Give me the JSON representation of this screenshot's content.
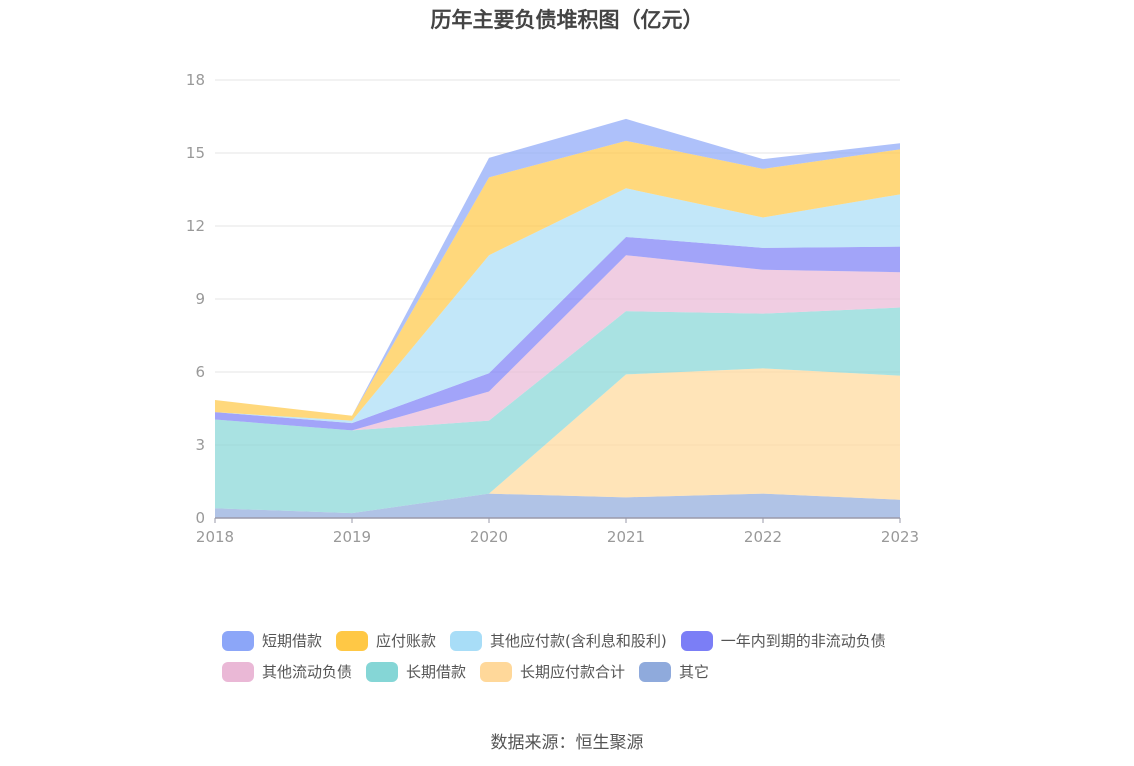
{
  "chart_data": {
    "type": "area",
    "stacked": true,
    "title": "历年主要负债堆积图（亿元）",
    "source": "数据来源：恒生聚源",
    "x": [
      "2018",
      "2019",
      "2020",
      "2021",
      "2022",
      "2023"
    ],
    "ylim": [
      0,
      18
    ],
    "yticks": [
      "0",
      "3",
      "6",
      "9",
      "12",
      "15",
      "18"
    ],
    "grid": true,
    "legend_position": "bottom",
    "series": [
      {
        "name": "其它",
        "color": "#8FAADC",
        "values": [
          0.4,
          0.2,
          1.0,
          0.85,
          1.0,
          0.75
        ]
      },
      {
        "name": "长期应付款合计",
        "color": "#FFD89A",
        "values": [
          0,
          0,
          0,
          5.05,
          5.15,
          5.1
        ]
      },
      {
        "name": "长期借款",
        "color": "#85D6D6",
        "values": [
          3.65,
          3.4,
          3.0,
          2.6,
          2.25,
          2.8
        ]
      },
      {
        "name": "其他流动负债",
        "color": "#EAB8D6",
        "values": [
          0,
          0,
          1.2,
          2.3,
          1.8,
          1.45
        ]
      },
      {
        "name": "一年内到期的非流动负债",
        "color": "#7B7EF6",
        "values": [
          0.3,
          0.3,
          0.75,
          0.75,
          0.9,
          1.05
        ]
      },
      {
        "name": "其他应付款(含利息和股利)",
        "color": "#A8DDF7",
        "values": [
          0,
          0.1,
          4.85,
          2.0,
          1.25,
          2.15
        ]
      },
      {
        "name": "应付账款",
        "color": "#FFC845",
        "values": [
          0.5,
          0.2,
          3.2,
          1.95,
          2.0,
          1.85
        ]
      },
      {
        "name": "短期借款",
        "color": "#8CA6F8",
        "values": [
          0,
          0,
          0.8,
          0.9,
          0.4,
          0.25
        ]
      }
    ],
    "legend_order": [
      "短期借款",
      "应付账款",
      "其他应付款(含利息和股利)",
      "一年内到期的非流动负债",
      "其他流动负债",
      "长期借款",
      "长期应付款合计",
      "其它"
    ]
  }
}
